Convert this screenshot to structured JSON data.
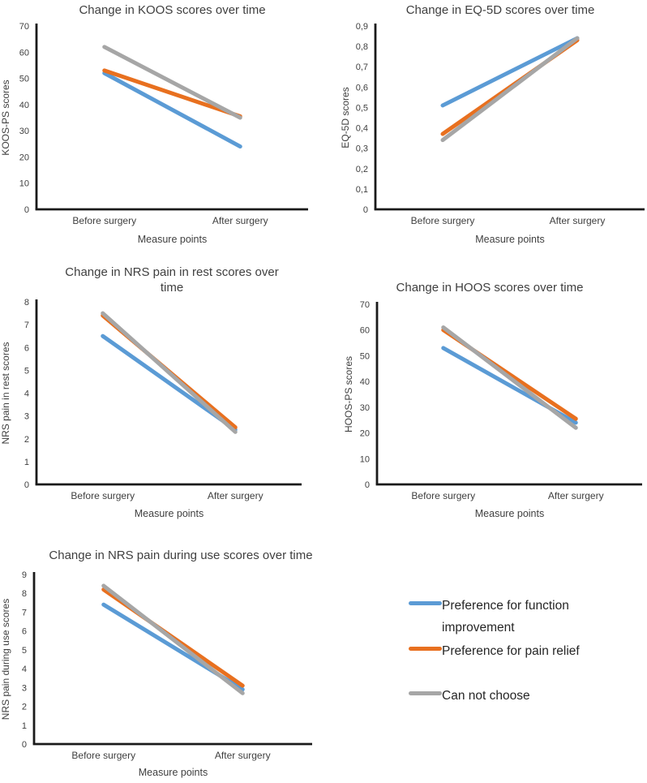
{
  "page": {
    "background": "#ffffff"
  },
  "colors": {
    "series_blue": "#5B9BD5",
    "series_orange": "#E8701F",
    "series_gray": "#A6A6A6",
    "axis_line": "#1a1a1a",
    "label_text": "#3f3f3f"
  },
  "legend": {
    "items": [
      {
        "label": "Preference for function improvement",
        "color": "#5B9BD5"
      },
      {
        "label": "Preference for pain relief",
        "color": "#E8701F"
      },
      {
        "label": "Can not choose",
        "color": "#A6A6A6"
      }
    ]
  },
  "chart_data": [
    {
      "type": "line",
      "title": "Change in KOOS scores over time",
      "xlabel": "Measure points",
      "ylabel": "KOOS-PS scores",
      "categories": [
        "Before surgery",
        "After surgery"
      ],
      "ylim": [
        0,
        70
      ],
      "ytick_step": 10,
      "ytick_labels": [
        "0",
        "10",
        "20",
        "30",
        "40",
        "50",
        "60",
        "70"
      ],
      "grid": false,
      "legend_position": "none",
      "series": [
        {
          "name": "Preference for function improvement",
          "color": "#5B9BD5",
          "values": [
            52,
            24
          ]
        },
        {
          "name": "Preference for pain relief",
          "color": "#E8701F",
          "values": [
            53,
            35.5
          ]
        },
        {
          "name": "Can not choose",
          "color": "#A6A6A6",
          "values": [
            62,
            35
          ]
        }
      ]
    },
    {
      "type": "line",
      "title": "Change in EQ-5D scores over time",
      "xlabel": "Measure points",
      "ylabel": "EQ-5D scores",
      "categories": [
        "Before surgery",
        "After surgery"
      ],
      "ylim": [
        0,
        0.9
      ],
      "ytick_step": 0.1,
      "ytick_labels": [
        "0",
        "0,1",
        "0,2",
        "0,3",
        "0,4",
        "0,5",
        "0,6",
        "0,7",
        "0,8",
        "0,9"
      ],
      "grid": false,
      "legend_position": "none",
      "series": [
        {
          "name": "Preference for function improvement",
          "color": "#5B9BD5",
          "values": [
            0.51,
            0.84
          ]
        },
        {
          "name": "Preference for pain relief",
          "color": "#E8701F",
          "values": [
            0.37,
            0.83
          ]
        },
        {
          "name": "Can not choose",
          "color": "#A6A6A6",
          "values": [
            0.34,
            0.84
          ]
        }
      ]
    },
    {
      "type": "line",
      "title": "Change in NRS pain in rest scores over time",
      "xlabel": "Measure points",
      "ylabel": "NRS pain in rest scores",
      "categories": [
        "Before surgery",
        "After surgery"
      ],
      "ylim": [
        0,
        8
      ],
      "ytick_step": 1,
      "ytick_labels": [
        "0",
        "1",
        "2",
        "3",
        "4",
        "5",
        "6",
        "7",
        "8"
      ],
      "grid": false,
      "legend_position": "none",
      "series": [
        {
          "name": "Preference for function improvement",
          "color": "#5B9BD5",
          "values": [
            6.5,
            2.4
          ]
        },
        {
          "name": "Preference for pain relief",
          "color": "#E8701F",
          "values": [
            7.4,
            2.5
          ]
        },
        {
          "name": "Can not choose",
          "color": "#A6A6A6",
          "values": [
            7.5,
            2.3
          ]
        }
      ]
    },
    {
      "type": "line",
      "title": "Change in HOOS scores over time",
      "xlabel": "Measure points",
      "ylabel": "HOOS-PS scores",
      "categories": [
        "Before surgery",
        "After surgery"
      ],
      "ylim": [
        0,
        70
      ],
      "ytick_step": 10,
      "ytick_labels": [
        "0",
        "10",
        "20",
        "30",
        "40",
        "50",
        "60",
        "70"
      ],
      "grid": false,
      "legend_position": "none",
      "series": [
        {
          "name": "Preference for function improvement",
          "color": "#5B9BD5",
          "values": [
            53,
            24
          ]
        },
        {
          "name": "Preference for pain relief",
          "color": "#E8701F",
          "values": [
            60,
            25.5
          ]
        },
        {
          "name": "Can not choose",
          "color": "#A6A6A6",
          "values": [
            61,
            22
          ]
        }
      ]
    },
    {
      "type": "line",
      "title": "Change in NRS pain during use scores over time",
      "xlabel": "Measure points",
      "ylabel": "NRS pain during use scores",
      "categories": [
        "Before surgery",
        "After surgery"
      ],
      "ylim": [
        0,
        9
      ],
      "ytick_step": 1,
      "ytick_labels": [
        "0",
        "1",
        "2",
        "3",
        "4",
        "5",
        "6",
        "7",
        "8",
        "9"
      ],
      "grid": false,
      "legend_position": "none",
      "series": [
        {
          "name": "Preference for function improvement",
          "color": "#5B9BD5",
          "values": [
            7.4,
            2.9
          ]
        },
        {
          "name": "Preference for pain relief",
          "color": "#E8701F",
          "values": [
            8.2,
            3.1
          ]
        },
        {
          "name": "Can not choose",
          "color": "#A6A6A6",
          "values": [
            8.4,
            2.7
          ]
        }
      ]
    }
  ]
}
